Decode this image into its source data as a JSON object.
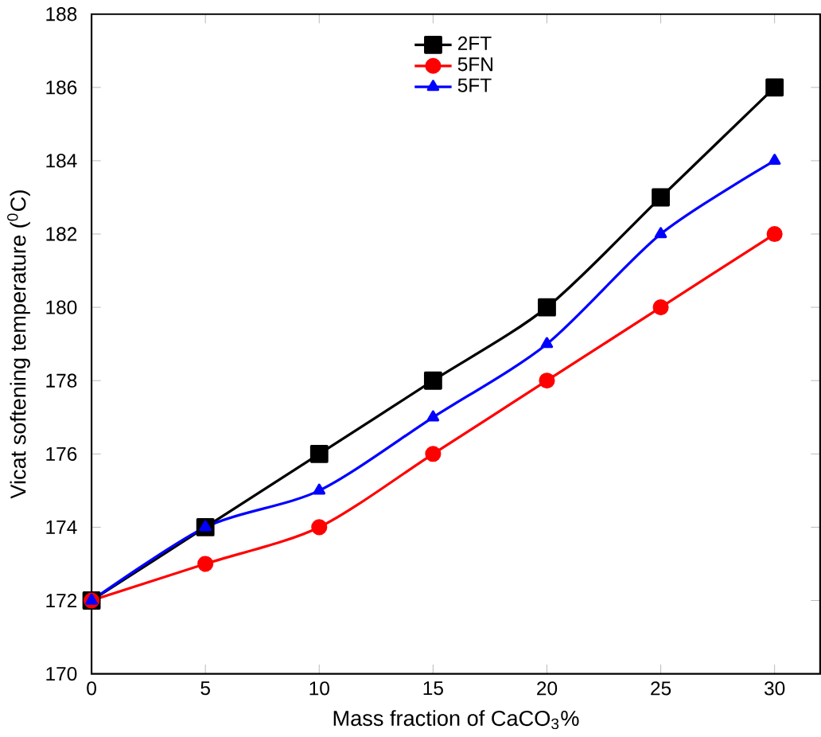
{
  "chart_data": {
    "type": "line",
    "xlabel": "Mass fraction of CaCO$_{3}$%",
    "ylabel": "Vicat softening temperature ($^{0}$C)",
    "x": [
      0,
      5,
      10,
      15,
      20,
      25,
      30
    ],
    "series": [
      {
        "name": "2FT",
        "color": "#000000",
        "marker": "square",
        "values": [
          172,
          174,
          176,
          178,
          180,
          183,
          186
        ]
      },
      {
        "name": "5FN",
        "color": "#ff0000",
        "marker": "circle",
        "values": [
          172,
          173,
          174,
          176,
          178,
          180,
          182
        ]
      },
      {
        "name": "5FT",
        "color": "#0000ff",
        "marker": "triangle",
        "values": [
          172,
          174,
          175,
          177,
          179,
          182,
          184
        ]
      }
    ],
    "xlim": [
      0,
      32
    ],
    "xticks": [
      0,
      5,
      10,
      15,
      20,
      25,
      30
    ],
    "ylim": [
      170,
      188
    ],
    "yticks": [
      170,
      172,
      174,
      176,
      178,
      180,
      182,
      184,
      186,
      188
    ],
    "legend": "top",
    "line_style": "solid",
    "grid": false
  }
}
